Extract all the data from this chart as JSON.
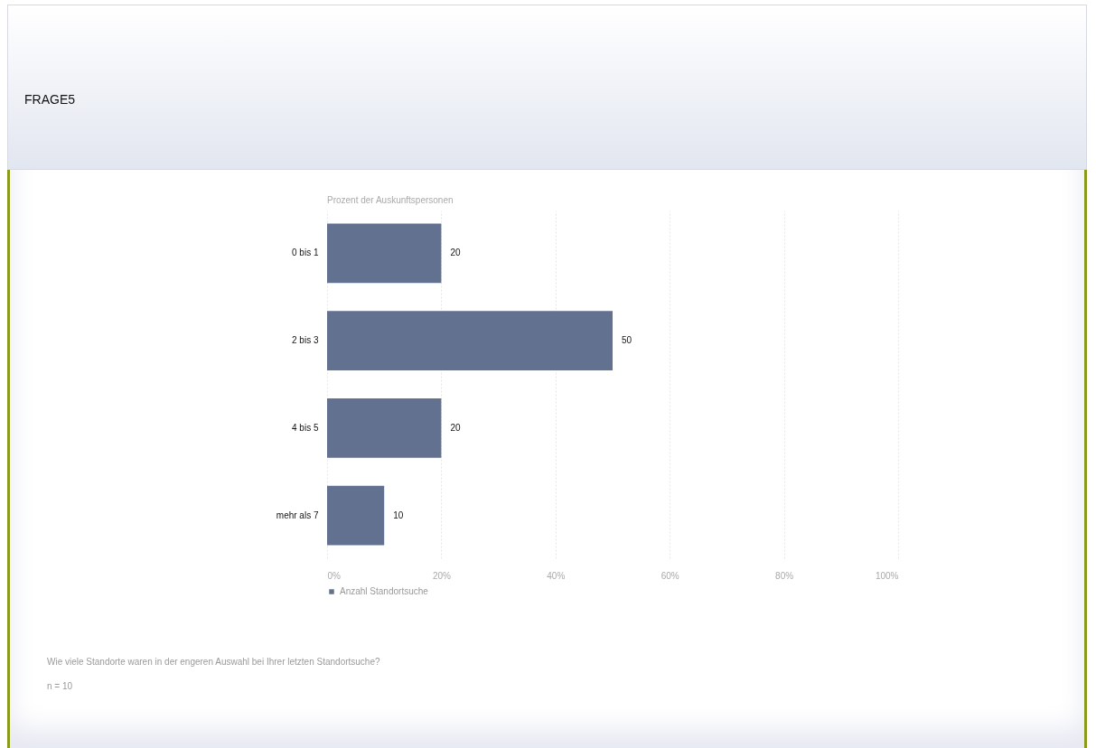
{
  "chart_data": {
    "type": "bar",
    "title": "FRAGE5",
    "orientation": "horizontal",
    "xlabel": "Prozent der Auskunftspersonen",
    "categories": [
      "0 bis 1",
      "2 bis 3",
      "4 bis 5",
      "mehr als 7"
    ],
    "series": [
      {
        "name": "Anzahl Standortsuche",
        "color": "#627190",
        "values": [
          20,
          50,
          20,
          10
        ]
      }
    ],
    "xlim": [
      0,
      100
    ],
    "xticks": [
      {
        "value": 0,
        "label": "0%"
      },
      {
        "value": 20,
        "label": "20%"
      },
      {
        "value": 40,
        "label": "40%"
      },
      {
        "value": 60,
        "label": "60%"
      },
      {
        "value": 80,
        "label": "80%"
      },
      {
        "value": 100,
        "label": "100%"
      }
    ],
    "grid": "x",
    "legend": "bottom",
    "data_labels": true,
    "annotations": [
      "Wie viele Standorte waren in der engeren Auswahl bei Ihrer letzten Standortsuche?",
      "n = 10"
    ]
  }
}
